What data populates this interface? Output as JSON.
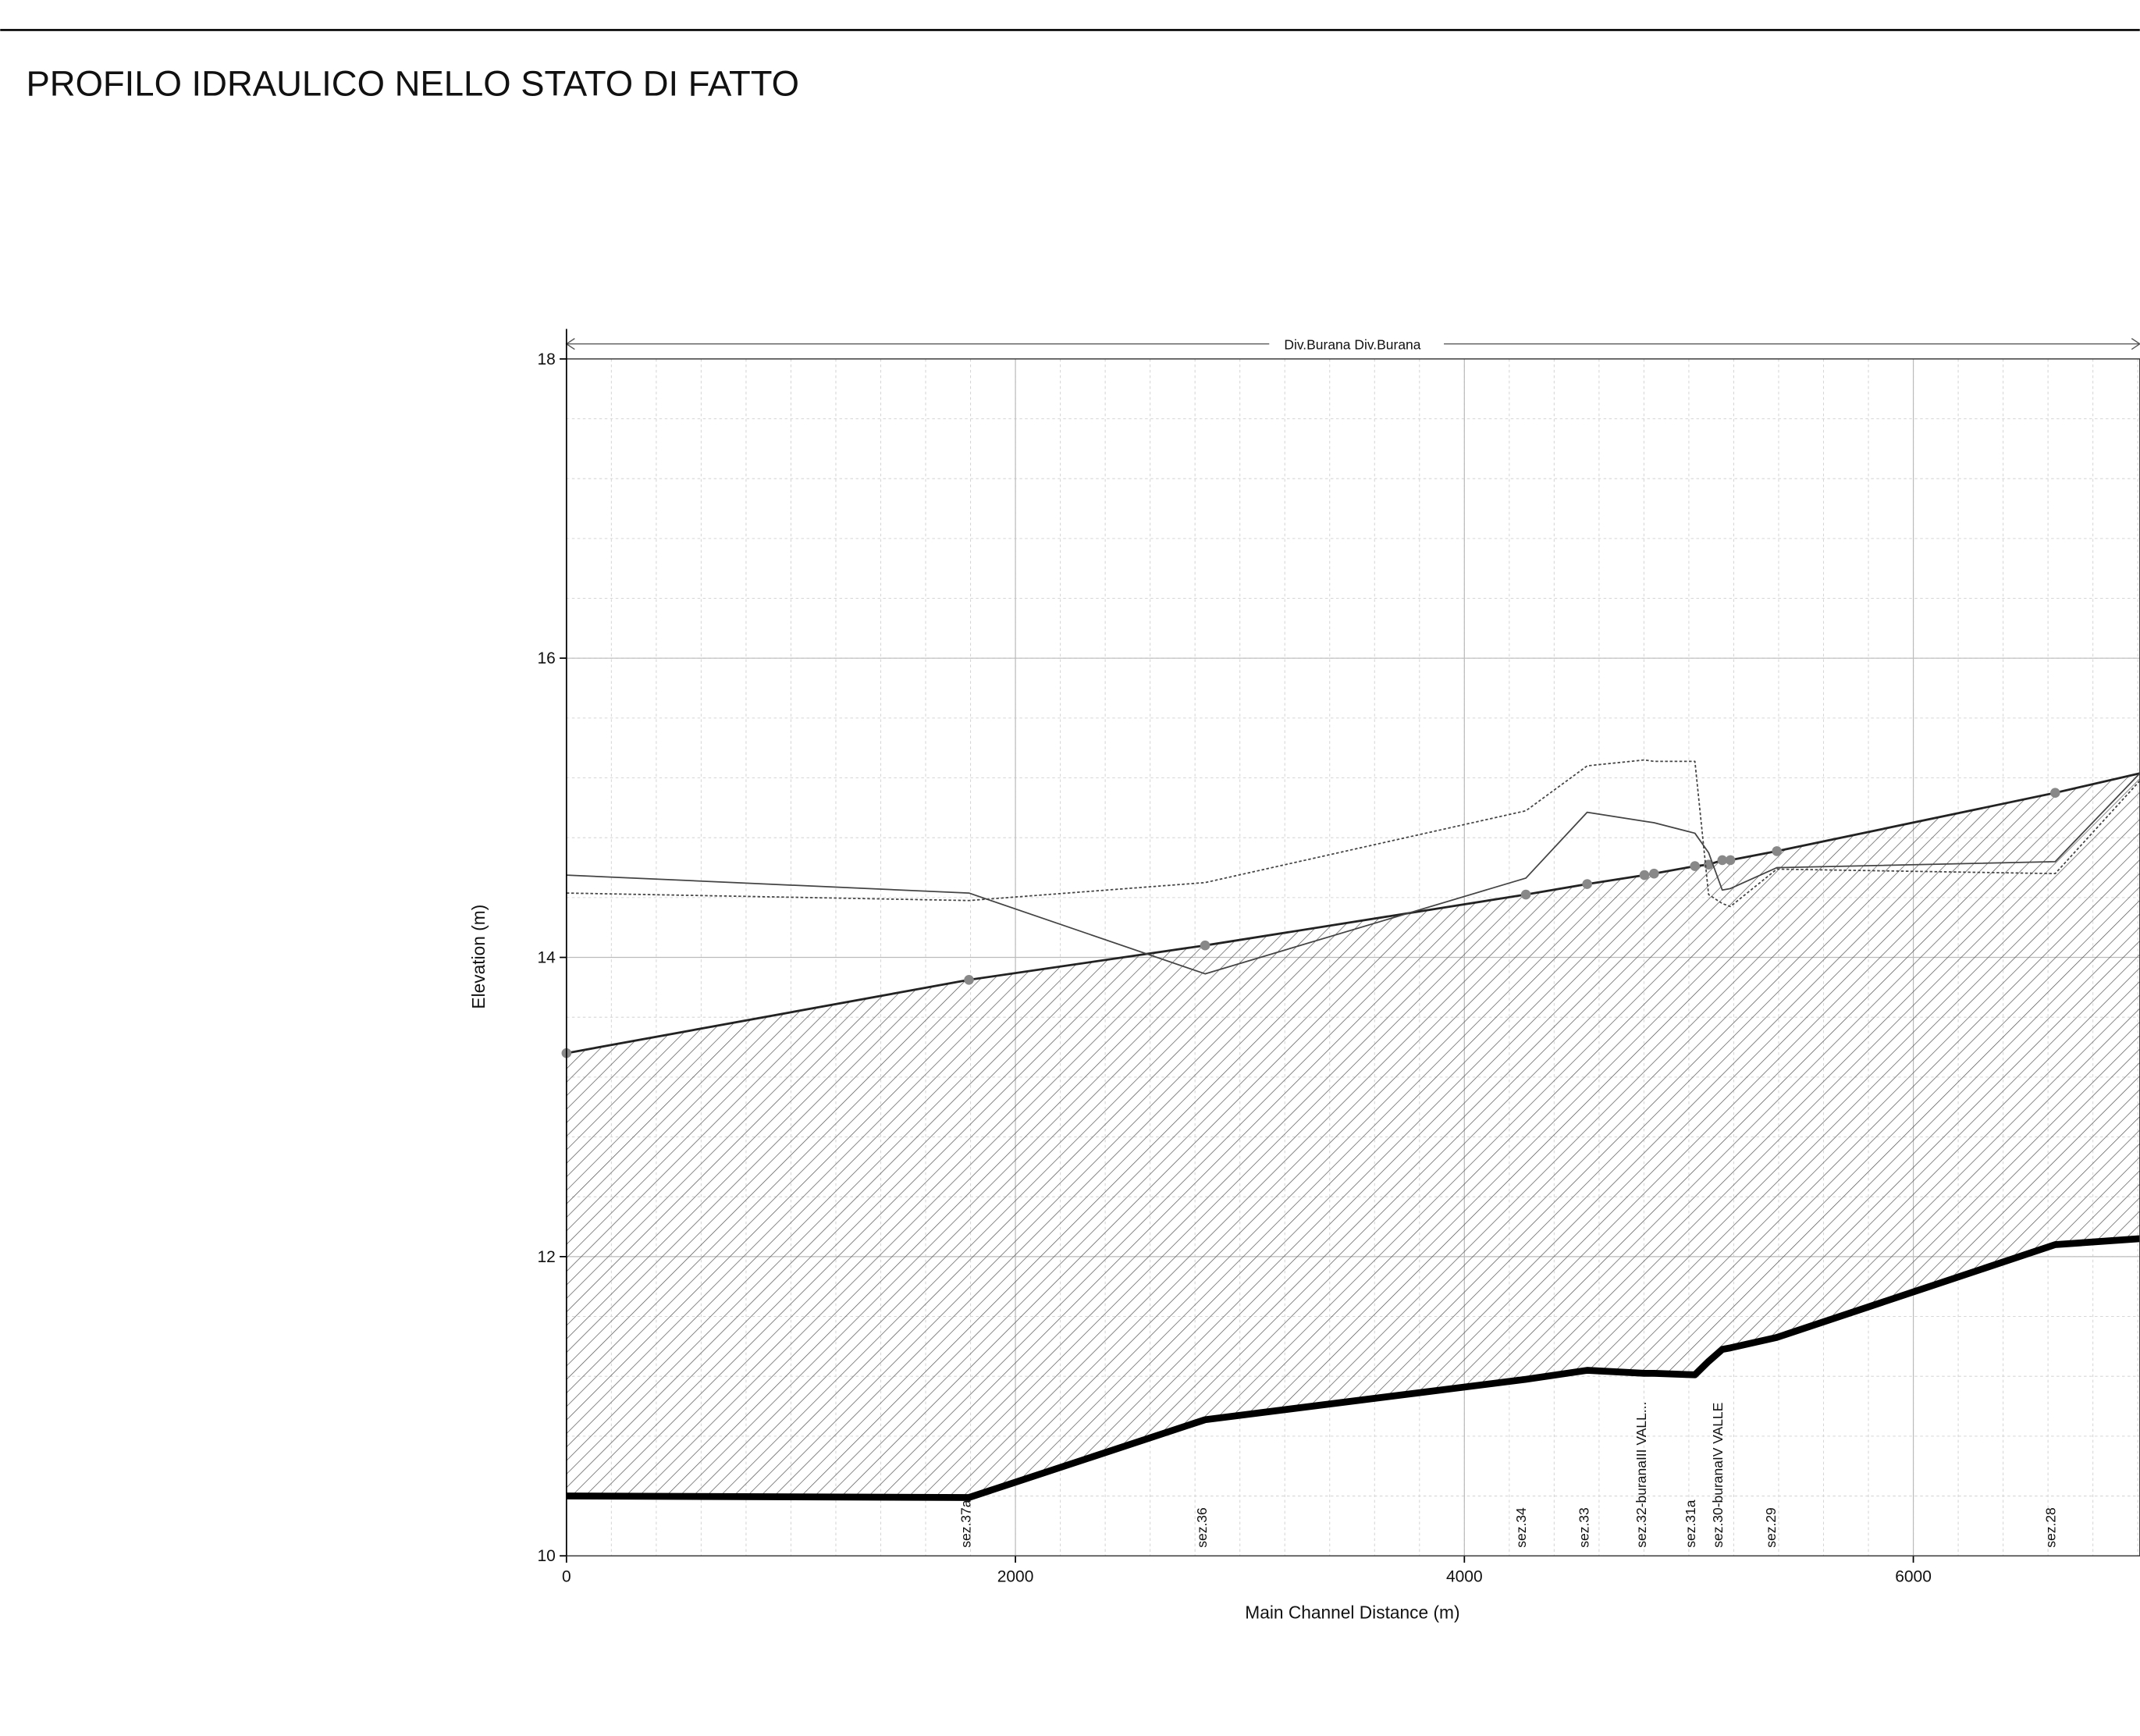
{
  "chart_data": {
    "type": "line",
    "title": "PROFILO IDRAULICO NELLO STATO DI FATTO",
    "reach_label": "Div.Burana Div.Burana",
    "xlabel": "Main Channel Distance (m)",
    "ylabel": "Elevation (m)",
    "x": [
      0,
      1793,
      2845,
      4274,
      4547,
      4802,
      4845,
      5027,
      5088,
      5149,
      5185,
      5392,
      6632,
      7009
    ],
    "series": [
      {
        "color": "#000000",
        "style": "bed",
        "values": [
          10.4,
          10.39,
          10.91,
          11.18,
          11.24,
          11.22,
          11.22,
          11.21,
          11.3,
          11.38,
          11.39,
          11.46,
          12.08,
          12.12
        ]
      },
      {
        "color": "#222222",
        "style": "water",
        "markers": true,
        "marker_color": "#888888",
        "values": [
          13.36,
          13.85,
          14.08,
          14.42,
          14.49,
          14.55,
          14.56,
          14.61,
          14.62,
          14.65,
          14.65,
          14.71,
          15.1,
          15.23
        ]
      },
      {
        "color": "#444444",
        "style": "solid",
        "values": [
          14.55,
          14.43,
          13.89,
          14.53,
          14.97,
          14.91,
          14.9,
          14.83,
          14.7,
          14.45,
          14.46,
          14.6,
          14.64,
          15.23
        ]
      },
      {
        "color": "#444444",
        "style": "dotted",
        "values": [
          14.43,
          14.38,
          14.5,
          14.98,
          15.28,
          15.32,
          15.31,
          15.31,
          14.42,
          14.36,
          14.34,
          14.59,
          14.56,
          15.18
        ]
      }
    ],
    "sections": [
      {
        "label": "sez.37a",
        "x": 1775
      },
      {
        "label": "sez.36",
        "x": 2827
      },
      {
        "label": "sez.34",
        "x": 4249
      },
      {
        "label": "sez.33",
        "x": 4529
      },
      {
        "label": "sez.32-buranaIII VALL...",
        "x": 4784
      },
      {
        "label": "sez.31a",
        "x": 5003
      },
      {
        "label": "sez.30-buranaIV VALLE",
        "x": 5125
      },
      {
        "label": "sez.29",
        "x": 5362
      },
      {
        "label": "sez.28",
        "x": 6608
      }
    ],
    "xlim": [
      0,
      7009
    ],
    "ylim": [
      10,
      18
    ],
    "xticks": [
      0,
      2000,
      4000,
      6000
    ],
    "yticks": [
      10,
      12,
      14,
      16,
      18
    ],
    "grid": true,
    "minor_grid": {
      "x": 200,
      "y": 0.4
    }
  }
}
